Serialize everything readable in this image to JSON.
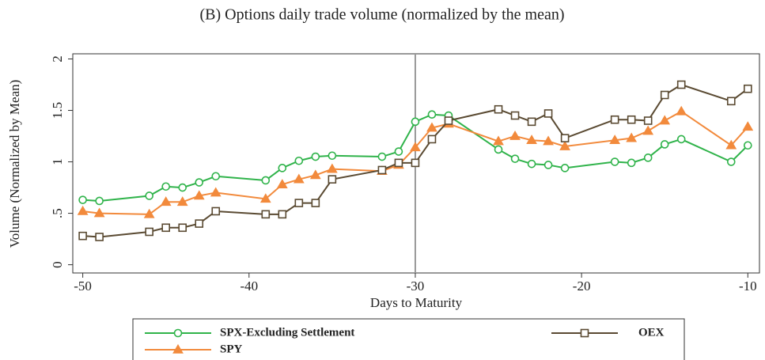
{
  "chart_data": {
    "type": "line",
    "title": "(B) Options daily trade volume (normalized by the mean)",
    "x_label": "Days to Maturity",
    "y_label": "Volume (Normalized by Mean)",
    "x": [
      -50,
      -49,
      -46,
      -45,
      -44,
      -43,
      -42,
      -39,
      -38,
      -37,
      -36,
      -35,
      -32,
      -31,
      -30,
      -29,
      -28,
      -25,
      -24,
      -23,
      -22,
      -21,
      -18,
      -17,
      -16,
      -15,
      -14,
      -11,
      -10
    ],
    "series": [
      {
        "name": "SPX-Excluding Settlement",
        "color": "#2fb34a",
        "marker": "circle",
        "values": [
          0.63,
          0.62,
          0.67,
          0.76,
          0.75,
          0.8,
          0.86,
          0.82,
          0.94,
          1.01,
          1.05,
          1.06,
          1.05,
          1.1,
          1.39,
          1.46,
          1.45,
          1.12,
          1.03,
          0.98,
          0.97,
          0.94,
          1.0,
          0.99,
          1.04,
          1.17,
          1.22,
          1.0,
          1.16
        ]
      },
      {
        "name": "SPY",
        "color": "#f28a3c",
        "marker": "triangle",
        "values": [
          0.52,
          0.5,
          0.49,
          0.61,
          0.61,
          0.67,
          0.7,
          0.64,
          0.78,
          0.83,
          0.87,
          0.93,
          0.91,
          0.97,
          1.14,
          1.33,
          1.37,
          1.2,
          1.25,
          1.21,
          1.2,
          1.15,
          1.21,
          1.23,
          1.3,
          1.4,
          1.49,
          1.16,
          1.34
        ]
      },
      {
        "name": "OEX",
        "color": "#5a4a32",
        "marker": "square",
        "values": [
          0.28,
          0.27,
          0.32,
          0.36,
          0.36,
          0.4,
          0.52,
          0.49,
          0.49,
          0.6,
          0.6,
          0.83,
          0.92,
          0.99,
          0.99,
          1.22,
          1.4,
          1.51,
          1.45,
          1.39,
          1.47,
          1.23,
          1.41,
          1.41,
          1.4,
          1.65,
          1.75,
          1.59,
          1.71
        ]
      }
    ],
    "xlim": [
      -50.6,
      -9.3
    ],
    "ylim": [
      -0.08,
      2.05
    ],
    "xticks": [
      -50,
      -40,
      -30,
      -20,
      -10
    ],
    "yticks": [
      0,
      {
        "value": 0.5,
        "label": ".5"
      },
      1,
      1.5,
      2
    ],
    "vline": -30,
    "legend": "bottom"
  }
}
